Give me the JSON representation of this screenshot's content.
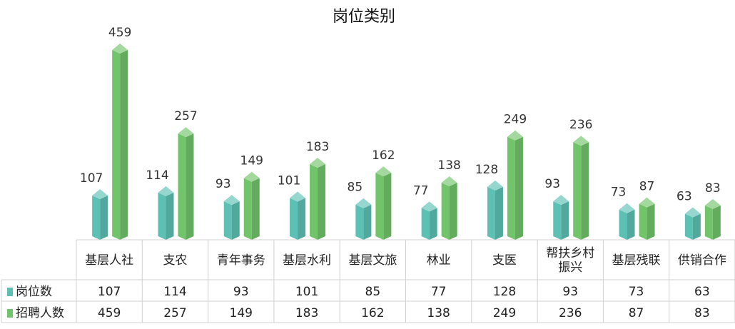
{
  "chart_data": {
    "type": "bar",
    "title": "岗位类别",
    "categories": [
      "基层人社",
      "支农",
      "青年事务",
      "基层水利",
      "基层文旅",
      "林业",
      "支医",
      "帮扶乡村振兴",
      "基层残联",
      "供销合作"
    ],
    "category_lines": [
      [
        "基层人社"
      ],
      [
        "支农"
      ],
      [
        "青年事务"
      ],
      [
        "基层水利"
      ],
      [
        "基层文旅"
      ],
      [
        "林业"
      ],
      [
        "支医"
      ],
      [
        "帮扶乡村",
        "振兴"
      ],
      [
        "基层残联"
      ],
      [
        "供销合作"
      ]
    ],
    "series": [
      {
        "name": "岗位数",
        "values": [
          107,
          114,
          93,
          101,
          85,
          77,
          128,
          93,
          73,
          63
        ],
        "color": "#5cc0b4"
      },
      {
        "name": "招聘人数",
        "values": [
          459,
          257,
          149,
          183,
          162,
          138,
          249,
          236,
          87,
          83
        ],
        "color": "#72c46a"
      }
    ],
    "ylim": [
      0,
      459
    ],
    "legend": "data-table",
    "data_table": true
  }
}
